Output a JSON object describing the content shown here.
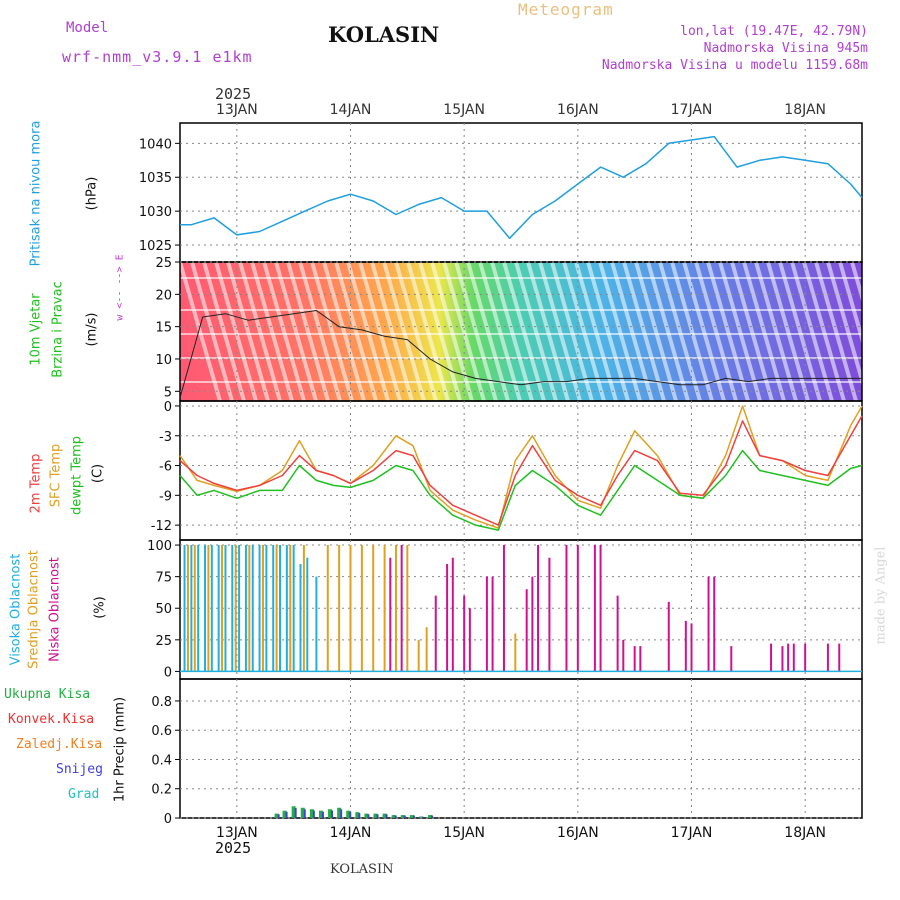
{
  "header": {
    "model_label": "Model",
    "model_name": "wrf-nmm_v3.9.1  e1km",
    "title": "KOLASIN",
    "meteogram_label": "Meteogram",
    "lonlat": "lon,lat (19.47E, 42.79N)",
    "altitude": "Nadmorska Visina 945m",
    "model_altitude": "Nadmorska Visina u modelu 1159.68m",
    "footer": "KOLASIN",
    "credit": "made by Angel",
    "year": "2025"
  },
  "colors": {
    "pressure": "#1f9fe0",
    "temp2m": "#f04040",
    "sfc_temp": "#e0a020",
    "dewpt": "#20c020",
    "high_cloud": "#20b0e0",
    "mid_cloud": "#e0a020",
    "low_cloud": "#d01090",
    "precip_total": "#20b040",
    "precip_conv": "#f03030",
    "precip_frz": "#f08020",
    "precip_snow": "#4040e0",
    "precip_grad": "#20c0c0",
    "wind_axis_label": "#c040d0",
    "header_purple": "#b040d0"
  },
  "x_axis": {
    "top_labels": [
      "13JAN",
      "14JAN",
      "15JAN",
      "16JAN",
      "17JAN",
      "18JAN"
    ],
    "bottom_labels": [
      "13JAN",
      "14JAN",
      "15JAN",
      "16JAN",
      "17JAN",
      "18JAN"
    ]
  },
  "panels": {
    "pressure": {
      "ylabel_main": "Pritisak na nivou mora",
      "ylabel_unit": "(hPa)",
      "ticks": [
        "1025",
        "1030",
        "1035",
        "1040"
      ]
    },
    "wind": {
      "ylabel_a": "10m Vjetar",
      "ylabel_b": "Brzina i Pravac",
      "ylabel_unit": "(m/s)",
      "dir_label": "w <-- --> E",
      "ticks": [
        "5",
        "10",
        "15",
        "20",
        "25"
      ]
    },
    "temperature": {
      "ylabel_a": "2m Temp",
      "ylabel_b": "SFC Temp",
      "ylabel_c": "dewpt Temp",
      "ylabel_unit": "(C)",
      "ticks": [
        "-12",
        "-9",
        "-6",
        "-3",
        "0"
      ]
    },
    "cloud": {
      "ylabel_a": "Visoka Oblacnost",
      "ylabel_b": "Srednja Oblacnost",
      "ylabel_c": "Niska Oblacnost",
      "ylabel_unit": "(%)",
      "ticks": [
        "0",
        "25",
        "50",
        "75",
        "100"
      ]
    },
    "precip": {
      "legend": [
        "Ukupna Kisa",
        "Konvek.Kisa",
        "Zaledj.Kisa",
        "Snijeg",
        "Grad"
      ],
      "ylabel": "1hr Precip (mm)",
      "ticks": [
        "0",
        "0.2",
        "0.4",
        "0.6",
        "0.8"
      ]
    }
  },
  "chart_data": [
    {
      "type": "line",
      "title": "Pritisak na nivou mora",
      "ylabel": "(hPa)",
      "xlim": [
        12.5,
        18.5
      ],
      "ylim": [
        1022.5,
        1043
      ],
      "series": [
        {
          "x": [
            12.5,
            12.6,
            12.8,
            13.0,
            13.2,
            13.4,
            13.6,
            13.8,
            14.0,
            14.2,
            14.4,
            14.6,
            14.8,
            15.0,
            15.2,
            15.4,
            15.6,
            15.8,
            16.0,
            16.2,
            16.4,
            16.6,
            16.8,
            17.0,
            17.2,
            17.4,
            17.6,
            17.8,
            18.0,
            18.2,
            18.4,
            18.5
          ],
          "y": [
            1028.0,
            1028.0,
            1029.0,
            1026.5,
            1027.0,
            1028.5,
            1030.0,
            1031.5,
            1032.5,
            1031.5,
            1029.5,
            1031.0,
            1032.0,
            1030.0,
            1030.0,
            1026.0,
            1029.5,
            1031.5,
            1034.0,
            1036.5,
            1035.0,
            1037.0,
            1040.0,
            1040.5,
            1041.0,
            1036.5,
            1037.5,
            1038.0,
            1037.5,
            1037.0,
            1034.0,
            1032.0
          ]
        }
      ]
    },
    {
      "type": "line",
      "title": "10m Vjetar Brzina i Pravac",
      "ylabel": "(m/s)",
      "xlim": [
        12.5,
        18.5
      ],
      "ylim": [
        3.5,
        25
      ],
      "series": [
        {
          "name": "wind speed",
          "x": [
            12.5,
            12.7,
            12.9,
            13.1,
            13.3,
            13.5,
            13.7,
            13.9,
            14.1,
            14.3,
            14.5,
            14.7,
            14.9,
            15.1,
            15.3,
            15.5,
            15.7,
            15.9,
            16.1,
            16.3,
            16.5,
            16.7,
            16.9,
            17.1,
            17.3,
            17.5,
            17.7,
            17.9,
            18.1,
            18.3,
            18.5
          ],
          "y": [
            4,
            16.5,
            17,
            16,
            16.5,
            17,
            17.5,
            15,
            14.5,
            13.5,
            13,
            10,
            8,
            7,
            6.5,
            6,
            6.5,
            6.5,
            7,
            7,
            7,
            6.5,
            6,
            6,
            7,
            6.5,
            7,
            7,
            7,
            7,
            7
          ]
        }
      ]
    },
    {
      "type": "line",
      "title": "2m Temp / SFC Temp / dewpt Temp",
      "ylabel": "(C)",
      "xlim": [
        12.5,
        18.5
      ],
      "ylim": [
        -13.5,
        0.5
      ],
      "x": [
        12.5,
        12.65,
        12.8,
        13.0,
        13.2,
        13.4,
        13.55,
        13.7,
        13.85,
        14.0,
        14.2,
        14.4,
        14.55,
        14.7,
        14.9,
        15.1,
        15.3,
        15.45,
        15.6,
        15.8,
        16.0,
        16.2,
        16.35,
        16.5,
        16.7,
        16.9,
        17.1,
        17.3,
        17.45,
        17.6,
        17.8,
        18.0,
        18.2,
        18.4,
        18.5
      ],
      "series": [
        {
          "name": "2m Temp",
          "y": [
            -5.5,
            -7,
            -7.8,
            -8.5,
            -8,
            -7,
            -5,
            -6.5,
            -7,
            -7.8,
            -6.5,
            -4.5,
            -5,
            -8,
            -10,
            -11,
            -12,
            -7,
            -4,
            -7.5,
            -9,
            -10,
            -7,
            -4.5,
            -5.5,
            -8.8,
            -9,
            -6,
            -1.5,
            -5,
            -5.5,
            -6.5,
            -7,
            -3,
            -1
          ]
        },
        {
          "name": "SFC Temp",
          "y": [
            -5,
            -7.5,
            -8,
            -8.6,
            -8,
            -6.5,
            -3.5,
            -6.5,
            -7,
            -7.8,
            -6,
            -3,
            -4,
            -8.5,
            -10.5,
            -11.5,
            -12.3,
            -5.5,
            -3,
            -7,
            -9.5,
            -10.3,
            -6,
            -2.5,
            -5,
            -9,
            -9.3,
            -5,
            0,
            -5,
            -5.5,
            -7,
            -7.5,
            -2,
            0
          ]
        },
        {
          "name": "dewpt Temp",
          "y": [
            -7,
            -9,
            -8.5,
            -9.3,
            -8.5,
            -8.5,
            -6,
            -7.5,
            -8,
            -8.2,
            -7.5,
            -6,
            -6.5,
            -9,
            -11,
            -12,
            -12.5,
            -8,
            -6.5,
            -8,
            -10,
            -11,
            -8.5,
            -6,
            -7.5,
            -9,
            -9.3,
            -7,
            -4.5,
            -6.5,
            -7,
            -7.5,
            -8,
            -6.3,
            -6
          ]
        }
      ]
    },
    {
      "type": "bar",
      "title": "Visoka / Srednja / Niska Oblacnost",
      "ylabel": "(%)",
      "xlim": [
        12.5,
        18.5
      ],
      "ylim": [
        0,
        100
      ],
      "series": [
        {
          "name": "Visoka Oblacnost",
          "x": [
            12.54,
            12.6,
            12.66,
            12.72,
            12.78,
            12.84,
            12.9,
            12.96,
            13.02,
            13.08,
            13.14,
            13.2,
            13.26,
            13.32,
            13.38,
            13.44,
            13.5,
            13.56,
            13.62,
            13.7
          ],
          "y": [
            100,
            100,
            100,
            100,
            100,
            100,
            100,
            100,
            100,
            100,
            100,
            100,
            100,
            100,
            100,
            100,
            100,
            85,
            90,
            75
          ]
        },
        {
          "name": "Srednja Oblacnost",
          "x": [
            12.57,
            12.63,
            12.75,
            12.87,
            12.99,
            13.11,
            13.23,
            13.35,
            13.47,
            13.59,
            13.8,
            13.9,
            14.0,
            14.1,
            14.2,
            14.3,
            14.4,
            14.5,
            14.6,
            14.67,
            15.35,
            15.45
          ],
          "y": [
            100,
            100,
            100,
            100,
            100,
            100,
            100,
            100,
            100,
            100,
            100,
            100,
            100,
            100,
            100,
            100,
            100,
            100,
            25,
            35,
            25,
            30
          ]
        },
        {
          "name": "Niska Oblacnost",
          "x": [
            14.35,
            14.45,
            14.75,
            14.85,
            14.9,
            15.0,
            15.05,
            15.2,
            15.25,
            15.35,
            15.55,
            15.6,
            15.65,
            15.75,
            15.9,
            16.0,
            16.15,
            16.2,
            16.35,
            16.4,
            16.5,
            16.55,
            16.8,
            16.95,
            17.0,
            17.15,
            17.2,
            17.35,
            17.7,
            17.8,
            17.85,
            17.9,
            18.0,
            18.2,
            18.3
          ],
          "y": [
            90,
            100,
            60,
            85,
            90,
            60,
            50,
            75,
            75,
            100,
            65,
            75,
            100,
            90,
            100,
            100,
            100,
            100,
            60,
            25,
            20,
            20,
            55,
            40,
            38,
            75,
            75,
            20,
            22,
            20,
            22,
            22,
            22,
            22,
            22
          ]
        }
      ]
    },
    {
      "type": "bar",
      "title": "1hr Precip",
      "ylabel": "1hr Precip (mm)",
      "xlim": [
        12.5,
        18.5
      ],
      "ylim": [
        0,
        0.95
      ],
      "series": [
        {
          "name": "Ukupna Kisa",
          "x": [
            13.35,
            13.42,
            13.5,
            13.58,
            13.66,
            13.74,
            13.82,
            13.9,
            13.98,
            14.06,
            14.14,
            14.22,
            14.3,
            14.38,
            14.46,
            14.54,
            14.62,
            14.7
          ],
          "y": [
            0.03,
            0.05,
            0.08,
            0.07,
            0.06,
            0.05,
            0.06,
            0.07,
            0.05,
            0.04,
            0.03,
            0.03,
            0.03,
            0.02,
            0.02,
            0.02,
            0.01,
            0.02
          ]
        }
      ]
    }
  ]
}
